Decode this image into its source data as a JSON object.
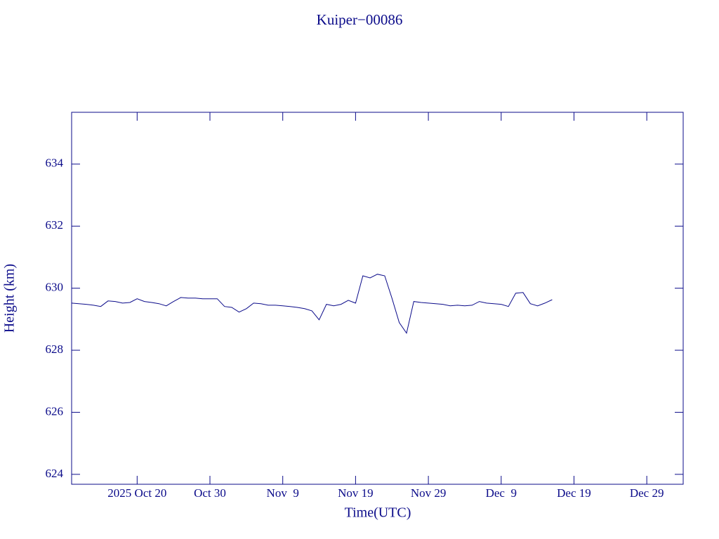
{
  "chart_data": {
    "type": "line",
    "title": "Kuiper−00086",
    "x_label": "Time(UTC)",
    "y_label": "Height (km)",
    "x": [
      "2025-10-11",
      "2025-10-12",
      "2025-10-13",
      "2025-10-14",
      "2025-10-15",
      "2025-10-16",
      "2025-10-17",
      "2025-10-18",
      "2025-10-19",
      "2025-10-20",
      "2025-10-21",
      "2025-10-22",
      "2025-10-23",
      "2025-10-24",
      "2025-10-25",
      "2025-10-26",
      "2025-10-27",
      "2025-10-28",
      "2025-10-29",
      "2025-10-30",
      "2025-10-31",
      "2025-11-01",
      "2025-11-02",
      "2025-11-03",
      "2025-11-04",
      "2025-11-05",
      "2025-11-06",
      "2025-11-07",
      "2025-11-08",
      "2025-11-09",
      "2025-11-10",
      "2025-11-11",
      "2025-11-12",
      "2025-11-13",
      "2025-11-14",
      "2025-11-15",
      "2025-11-16",
      "2025-11-17",
      "2025-11-18",
      "2025-11-19",
      "2025-11-20",
      "2025-11-21",
      "2025-11-22",
      "2025-11-23",
      "2025-11-24",
      "2025-11-25",
      "2025-11-26",
      "2025-11-27",
      "2025-11-28",
      "2025-11-29",
      "2025-11-30",
      "2025-12-01",
      "2025-12-02",
      "2025-12-03",
      "2025-12-04",
      "2025-12-05",
      "2025-12-06",
      "2025-12-07",
      "2025-12-08",
      "2025-12-09",
      "2025-12-10",
      "2025-12-11",
      "2025-12-12",
      "2025-12-13",
      "2025-12-14",
      "2025-12-15",
      "2025-12-16"
    ],
    "series": [
      {
        "name": "Height",
        "color": "#0b0b8a",
        "values": [
          629.52,
          629.5,
          629.48,
          629.45,
          629.41,
          629.59,
          629.57,
          629.52,
          629.54,
          629.66,
          629.57,
          629.54,
          629.5,
          629.43,
          629.57,
          629.7,
          629.68,
          629.68,
          629.66,
          629.66,
          629.66,
          629.41,
          629.38,
          629.23,
          629.34,
          629.52,
          629.5,
          629.45,
          629.45,
          629.43,
          629.41,
          629.38,
          629.34,
          629.27,
          628.98,
          629.48,
          629.43,
          629.48,
          629.61,
          629.52,
          630.4,
          630.33,
          630.45,
          630.4,
          629.68,
          628.89,
          628.55,
          629.57,
          629.54,
          629.52,
          629.5,
          629.48,
          629.43,
          629.45,
          629.43,
          629.45,
          629.57,
          629.52,
          629.5,
          629.48,
          629.41,
          629.84,
          629.86,
          629.5,
          629.43,
          629.52,
          629.63
        ]
      }
    ],
    "xlim": [
      "2025-10-11",
      "2026-01-03"
    ],
    "xticks": [
      {
        "value": "2025-10-20",
        "label": "2025 Oct 20"
      },
      {
        "value": "2025-10-30",
        "label": "Oct 30"
      },
      {
        "value": "2025-11-09",
        "label": "Nov  9"
      },
      {
        "value": "2025-11-19",
        "label": "Nov 19"
      },
      {
        "value": "2025-11-29",
        "label": "Nov 29"
      },
      {
        "value": "2025-12-09",
        "label": "Dec  9"
      },
      {
        "value": "2025-12-19",
        "label": "Dec 19"
      },
      {
        "value": "2025-12-29",
        "label": "Dec 29"
      }
    ],
    "ylim": [
      623.68,
      635.67
    ],
    "yticks": [
      624,
      626,
      628,
      630,
      632,
      634
    ],
    "grid": false
  }
}
